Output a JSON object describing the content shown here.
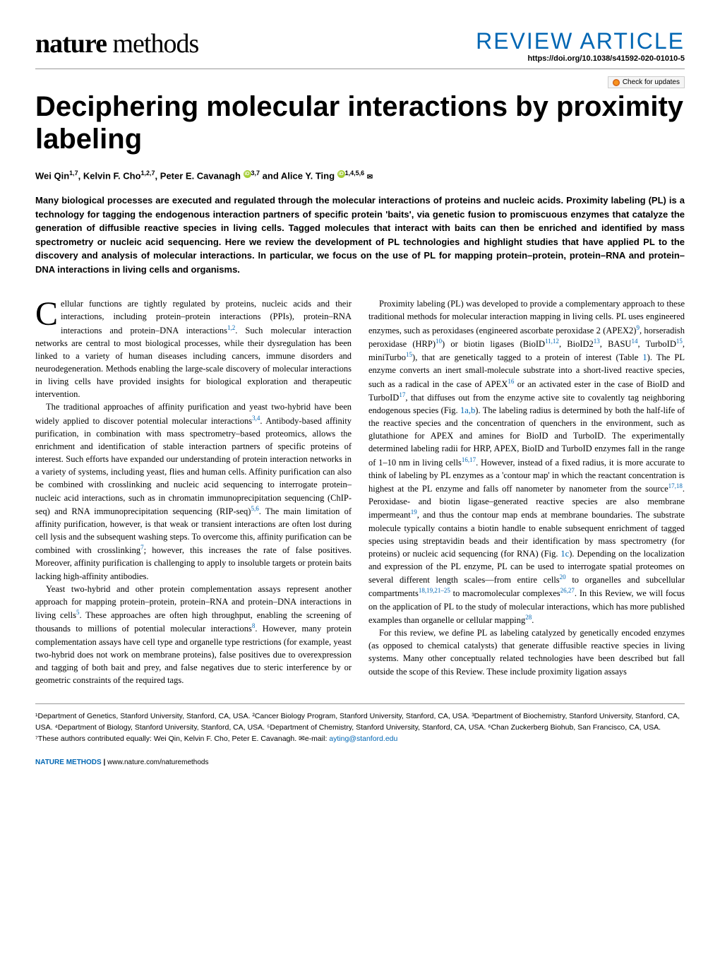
{
  "header": {
    "journal": "nature methods",
    "article_type": "REVIEW ARTICLE",
    "doi": "https://doi.org/10.1038/s41592-020-01010-5",
    "updates_badge": "Check for updates"
  },
  "title": "Deciphering molecular interactions by proximity labeling",
  "authors_html": "Wei Qin<sup>1,7</sup>, Kelvin F. Cho<sup>1,2,7</sup>, Peter E. Cavanagh <span class='orcid'>iD</span><sup>3,7</sup> and Alice Y. Ting <span class='orcid'>iD</span><sup>1,4,5,6</sup> <span class='envelope'>✉</span>",
  "abstract": "Many biological processes are executed and regulated through the molecular interactions of proteins and nucleic acids. Proximity labeling (PL) is a technology for tagging the endogenous interaction partners of specific protein 'baits', via genetic fusion to promiscuous enzymes that catalyze the generation of diffusible reactive species in living cells. Tagged molecules that interact with baits can then be enriched and identified by mass spectrometry or nucleic acid sequencing. Here we review the development of PL technologies and highlight studies that have applied PL to the discovery and analysis of molecular interactions. In particular, we focus on the use of PL for mapping protein–protein, protein–RNA and protein–DNA interactions in living cells and organisms.",
  "body": {
    "p1": "Cellular functions are tightly regulated by proteins, nucleic acids and their interactions, including protein–protein interactions (PPIs), protein–RNA interactions and protein–DNA interactions",
    "p1b": ". Such molecular interaction networks are central to most biological processes, while their dysregulation has been linked to a variety of human diseases including cancers, immune disorders and neurodegeneration. Methods enabling the large-scale discovery of molecular interactions in living cells have provided insights for biological exploration and therapeutic intervention.",
    "p2a": "The traditional approaches of affinity purification and yeast two-hybrid have been widely applied to discover potential molecular interactions",
    "p2b": ". Antibody-based affinity purification, in combination with mass spectrometry–based proteomics, allows the enrichment and identification of stable interaction partners of specific proteins of interest. Such efforts have expanded our understanding of protein interaction networks in a variety of systems, including yeast, flies and human cells. Affinity purification can also be combined with crosslinking and nucleic acid sequencing to interrogate protein–nucleic acid interactions, such as in chromatin immunoprecipitation sequencing (ChIP-seq) and RNA immunoprecipitation sequencing (RIP-seq)",
    "p2c": ". The main limitation of affinity purification, however, is that weak or transient interactions are often lost during cell lysis and the subsequent washing steps. To overcome this, affinity purification can be combined with crosslinking",
    "p2d": "; however, this increases the rate of false positives. Moreover, affinity purification is challenging to apply to insoluble targets or protein baits lacking high-affinity antibodies.",
    "p3a": "Yeast two-hybrid and other protein complementation assays represent another approach for mapping protein–protein, protein–RNA and protein–DNA interactions in living cells",
    "p3b": ". These approaches are often high throughput, enabling the screening of thousands to millions of potential molecular interactions",
    "p3c": ". However, many protein complementation assays have cell type and organelle type restrictions (for example, yeast two-hybrid does not work on membrane proteins), false positives due to overexpression and tagging of both bait and prey, and false negatives due to steric interference by or geometric constraints of the required tags.",
    "p4a": "Proximity labeling (PL) was developed to provide a complementary approach to these traditional methods for molecular interaction mapping in living cells. PL uses engineered enzymes, such as peroxidases (engineered ascorbate peroxidase 2 (APEX2)",
    "p4b": ", horseradish peroxidase (HRP)",
    "p4c": ") or biotin ligases (BioID",
    "p4d": ", BioID2",
    "p4e": ", BASU",
    "p4f": ", TurboID",
    "p4g": ", miniTurbo",
    "p4h": "), that are genetically tagged to a protein of interest (Table ",
    "p4i": "). The PL enzyme converts an inert small-molecule substrate into a short-lived reactive species, such as a radical in the case of APEX",
    "p4j": " or an activated ester in the case of BioID and TurboID",
    "p4k": ", that diffuses out from the enzyme active site to covalently tag neighboring endogenous species (Fig. ",
    "p4l": "). The labeling radius is determined by both the half-life of the reactive species and the concentration of quenchers in the environment, such as glutathione for APEX and amines for BioID and TurboID. The experimentally determined labeling radii for HRP, APEX, BioID and TurboID enzymes fall in the range of 1–10 nm in living cells",
    "p4m": ". However, instead of a fixed radius, it is more accurate to think of labeling by PL enzymes as a 'contour map' in which the reactant concentration is highest at the PL enzyme and falls off nanometer by nanometer from the source",
    "p4n": ". Peroxidase- and biotin ligase–generated reactive species are also membrane impermeant",
    "p4o": ", and thus the contour map ends at membrane boundaries. The substrate molecule typically contains a biotin handle to enable subsequent enrichment of tagged species using streptavidin beads and their identification by mass spectrometry (for proteins) or nucleic acid sequencing (for RNA) (Fig. ",
    "p4p": "). Depending on the localization and expression of the PL enzyme, PL can be used to interrogate spatial proteomes on several different length scales—from entire cells",
    "p4q": " to organelles and subcellular compartments",
    "p4r": " to macromolecular complexes",
    "p4s": ". In this Review, we will focus on the application of PL to the study of molecular interactions, which has more published examples than organelle or cellular mapping",
    "p4t": ".",
    "p5": "For this review, we define PL as labeling catalyzed by genetically encoded enzymes (as opposed to chemical catalysts) that generate diffusible reactive species in living systems. Many other conceptually related technologies have been described but fall outside the scope of this Review. These include proximity ligation assays"
  },
  "refs": {
    "r12": "1,2",
    "r34": "3,4",
    "r56": "5,6",
    "r7": "7",
    "r5": "5",
    "r8": "8",
    "r9": "9",
    "r10": "10",
    "r1112": "11,12",
    "r13": "13",
    "r14": "14",
    "r15": "15",
    "r16": "16",
    "r17": "17",
    "r1617": "16,17",
    "r1718": "17,18",
    "r19": "19",
    "r20": "20",
    "r181921_25": "18,19,21–25",
    "r2627": "26,27",
    "r28": "28",
    "tab1": "1",
    "fig1ab": "1a,b",
    "fig1c": "1c"
  },
  "affiliations": "¹Department of Genetics, Stanford University, Stanford, CA, USA. ²Cancer Biology Program, Stanford University, Stanford, CA, USA. ³Department of Biochemistry, Stanford University, Stanford, CA, USA. ⁴Department of Biology, Stanford University, Stanford, CA, USA. ⁵Department of Chemistry, Stanford University, Stanford, CA, USA. ⁶Chan Zuckerberg Biohub, San Francisco, CA, USA. ⁷These authors contributed equally: Wei Qin, Kelvin F. Cho, Peter E. Cavanagh. ✉e-mail: ",
  "email": "ayting@stanford.edu",
  "footer": {
    "brand": "NATURE METHODS",
    "link": "www.nature.com/naturemethods"
  }
}
